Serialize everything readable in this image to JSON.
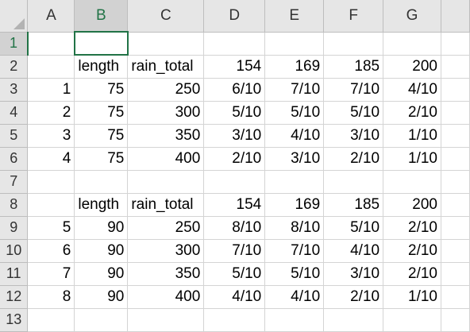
{
  "columns": [
    "A",
    "B",
    "C",
    "D",
    "E",
    "F",
    "G",
    ""
  ],
  "selected_column": "B",
  "selected_row": "1",
  "rows": [
    {
      "num": "1",
      "cells": [
        "",
        "",
        "",
        "",
        "",
        "",
        "",
        ""
      ]
    },
    {
      "num": "2",
      "cells": [
        "",
        "length",
        "rain_total",
        "154",
        "169",
        "185",
        "200",
        ""
      ]
    },
    {
      "num": "3",
      "cells": [
        "1",
        "75",
        "250",
        "6/10",
        "7/10",
        "7/10",
        "4/10",
        ""
      ]
    },
    {
      "num": "4",
      "cells": [
        "2",
        "75",
        "300",
        "5/10",
        "5/10",
        "5/10",
        "2/10",
        ""
      ]
    },
    {
      "num": "5",
      "cells": [
        "3",
        "75",
        "350",
        "3/10",
        "4/10",
        "3/10",
        "1/10",
        ""
      ]
    },
    {
      "num": "6",
      "cells": [
        "4",
        "75",
        "400",
        "2/10",
        "3/10",
        "2/10",
        "1/10",
        ""
      ]
    },
    {
      "num": "7",
      "cells": [
        "",
        "",
        "",
        "",
        "",
        "",
        "",
        ""
      ]
    },
    {
      "num": "8",
      "cells": [
        "",
        "length",
        "rain_total",
        "154",
        "169",
        "185",
        "200",
        ""
      ]
    },
    {
      "num": "9",
      "cells": [
        "5",
        "90",
        "250",
        "8/10",
        "8/10",
        "5/10",
        "2/10",
        ""
      ]
    },
    {
      "num": "10",
      "cells": [
        "6",
        "90",
        "300",
        "7/10",
        "7/10",
        "4/10",
        "2/10",
        ""
      ]
    },
    {
      "num": "11",
      "cells": [
        "7",
        "90",
        "350",
        "5/10",
        "5/10",
        "3/10",
        "2/10",
        ""
      ]
    },
    {
      "num": "12",
      "cells": [
        "8",
        "90",
        "400",
        "4/10",
        "4/10",
        "2/10",
        "1/10",
        ""
      ]
    },
    {
      "num": "13",
      "cells": [
        "",
        "",
        "",
        "",
        "",
        "",
        "",
        ""
      ]
    }
  ]
}
